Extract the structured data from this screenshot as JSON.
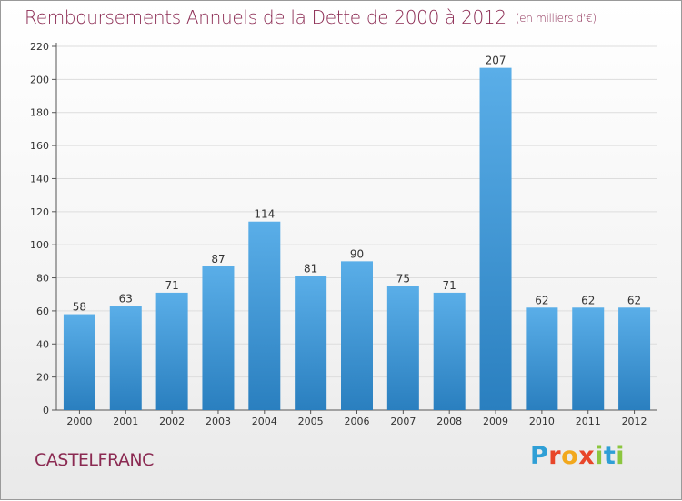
{
  "title": "Remboursements Annuels de la Dette de 2000 à 2012",
  "unit_note": "(en milliers d'€)",
  "place": "CASTELFRANC",
  "logo": {
    "letters": [
      "P",
      "r",
      "o",
      "x",
      "i",
      "t",
      "i"
    ],
    "colors": [
      "#2f9fd6",
      "#e8462a",
      "#f2a81d",
      "#e8462a",
      "#8cc63f",
      "#2f9fd6",
      "#8cc63f"
    ]
  },
  "chart_data": {
    "type": "bar",
    "categories": [
      "2000",
      "2001",
      "2002",
      "2003",
      "2004",
      "2005",
      "2006",
      "2007",
      "2008",
      "2009",
      "2010",
      "2011",
      "2012"
    ],
    "values": [
      58,
      63,
      71,
      87,
      114,
      81,
      90,
      75,
      71,
      207,
      62,
      62,
      62
    ],
    "value_labels": [
      "58",
      "63",
      "71",
      "87",
      "114",
      "81",
      "90",
      "75",
      "71",
      "207",
      "62",
      "62",
      "62"
    ],
    "yticks": [
      "0",
      "20",
      "40",
      "60",
      "80",
      "100",
      "120",
      "140",
      "160",
      "180",
      "200",
      "220"
    ],
    "ylim": [
      0,
      220
    ],
    "bar_color_top": "#5aaee8",
    "bar_color_bottom": "#2a7fbf",
    "grid_color": "#dddddd",
    "grid": true
  }
}
